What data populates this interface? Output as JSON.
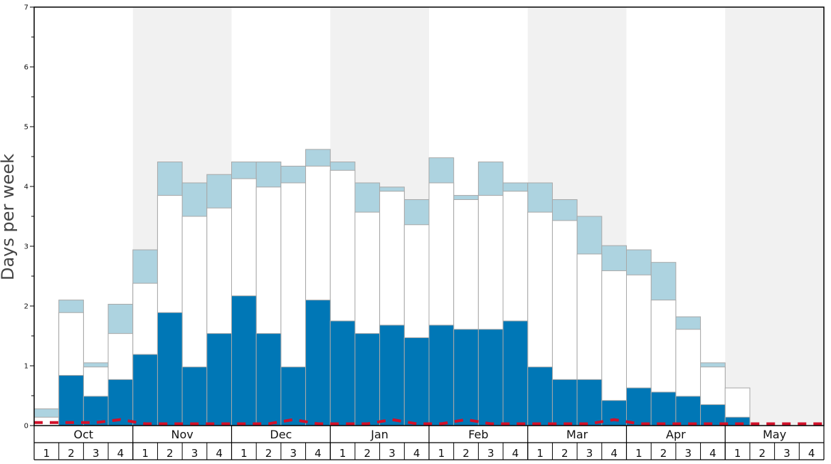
{
  "chart_data": {
    "type": "bar",
    "title": "",
    "ylabel": "Days per week",
    "ylim": [
      0,
      7
    ],
    "yticks": [
      "0",
      "1",
      "2",
      "3",
      "4",
      "5",
      "6",
      "7"
    ],
    "grid": false,
    "background_bands": "alternating months shaded",
    "months": [
      "Oct",
      "Nov",
      "Dec",
      "Jan",
      "Feb",
      "Mar",
      "Apr",
      "May"
    ],
    "weeks": [
      "1",
      "2",
      "3",
      "4"
    ],
    "categories": [
      "Oct 1",
      "Oct 2",
      "Oct 3",
      "Oct 4",
      "Nov 1",
      "Nov 2",
      "Nov 3",
      "Nov 4",
      "Dec 1",
      "Dec 2",
      "Dec 3",
      "Dec 4",
      "Jan 1",
      "Jan 2",
      "Jan 3",
      "Jan 4",
      "Feb 1",
      "Feb 2",
      "Feb 3",
      "Feb 4",
      "Mar 1",
      "Mar 2",
      "Mar 3",
      "Mar 4",
      "Apr 1",
      "Apr 2",
      "Apr 3",
      "Apr 4",
      "May 1",
      "May 2",
      "May 3",
      "May 4"
    ],
    "series": [
      {
        "values": [
          0.0,
          0.84,
          0.49,
          0.77,
          1.19,
          1.89,
          0.98,
          1.54,
          2.17,
          1.54,
          0.98,
          2.1,
          1.75,
          1.54,
          1.68,
          1.47,
          1.68,
          1.61,
          1.61,
          1.75,
          0.98,
          0.77,
          0.77,
          0.42,
          0.63,
          0.56,
          0.49,
          0.35,
          0.14,
          0.0,
          0.0,
          0.0
        ],
        "color": "#0077b6"
      },
      {
        "values": [
          0.14,
          1.89,
          0.98,
          1.54,
          2.38,
          3.85,
          3.5,
          3.64,
          4.13,
          3.99,
          4.06,
          4.34,
          4.27,
          3.57,
          3.92,
          3.36,
          4.06,
          3.78,
          3.85,
          3.92,
          3.57,
          3.43,
          2.87,
          2.59,
          2.52,
          2.1,
          1.61,
          0.98,
          0.63,
          0.0,
          0.0,
          0.0
        ],
        "color": "#ffffff"
      },
      {
        "values": [
          0.28,
          2.1,
          1.05,
          2.03,
          2.94,
          4.41,
          4.06,
          4.2,
          4.41,
          4.41,
          4.34,
          4.62,
          4.41,
          4.06,
          3.99,
          3.78,
          4.48,
          3.85,
          4.41,
          4.06,
          4.06,
          3.78,
          3.5,
          3.01,
          2.94,
          2.73,
          1.82,
          1.05,
          0.0,
          0.0,
          0.0,
          0.0
        ],
        "color": "#add3e0"
      }
    ],
    "reference_line": {
      "style": "dashed",
      "color": "#d2112a",
      "values": [
        0.05,
        0.05,
        0.05,
        0.1,
        0.03,
        0.03,
        0.03,
        0.03,
        0.03,
        0.03,
        0.1,
        0.03,
        0.03,
        0.03,
        0.1,
        0.03,
        0.03,
        0.1,
        0.03,
        0.03,
        0.03,
        0.03,
        0.03,
        0.1,
        0.03,
        0.03,
        0.03,
        0.03,
        0.03,
        0.03,
        0.03,
        0.03
      ]
    },
    "colors": {
      "band_shade": "#f1f1f1",
      "bar_outline": "#a8a8a8",
      "frame": "#000000"
    }
  }
}
